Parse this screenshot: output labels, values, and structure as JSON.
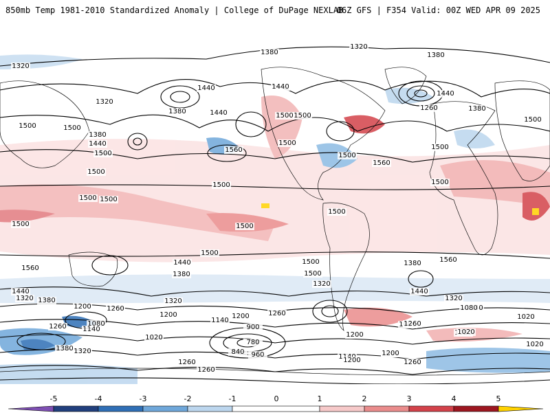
{
  "header": {
    "title": "850mb Temp 1981-2010 Standardized Anomaly | College of DuPage NEXLAB",
    "run_info": "06Z GFS | F354 Valid: 00Z WED APR 09 2025"
  },
  "colors": {
    "neg5": "#7e4fb3",
    "neg4": "#213f7d",
    "neg3": "#2f6fb6",
    "neg2": "#6fa7da",
    "neg1": "#bcd6ee",
    "zero": "#ffffff",
    "pos1": "#f6c9c9",
    "pos2": "#ea8c8c",
    "pos3": "#d3424a",
    "pos4": "#9d1620",
    "pos5": "#ffd200"
  },
  "colorbar": {
    "ticks": [
      "-5",
      "-4",
      "-3",
      "-2",
      "-1",
      "0",
      "1",
      "2",
      "3",
      "4",
      "5"
    ]
  },
  "contour_labels": [
    "1320",
    "1380",
    "1320",
    "1380",
    "1440",
    "1440",
    "1500",
    "1440",
    "1380",
    "1260",
    "1380",
    "1440",
    "1320",
    "1500",
    "1500",
    "1500",
    "1500",
    "1380",
    "1440",
    "1500",
    "1560",
    "1560",
    "1500",
    "1500",
    "1500",
    "1500",
    "1500",
    "1500",
    "1500",
    "1500",
    "1500",
    "1500",
    "1500",
    "1500",
    "1560",
    "1500",
    "1440",
    "1380",
    "1380",
    "1560",
    "1500",
    "1440",
    "1320",
    "1320",
    "1440",
    "1320",
    "1380",
    "1320",
    "1200",
    "1260",
    "1080",
    "1140",
    "1200",
    "1260",
    "1140",
    "1080",
    "1020",
    "1260",
    "1140",
    "1200",
    "1020",
    "900",
    "780",
    "1020",
    "1080",
    "1200",
    "1260",
    "1020",
    "1380",
    "1320",
    "840",
    "960",
    "1140",
    "1080",
    "1200",
    "1260",
    "1020",
    "1260",
    "1200",
    "1260"
  ]
}
